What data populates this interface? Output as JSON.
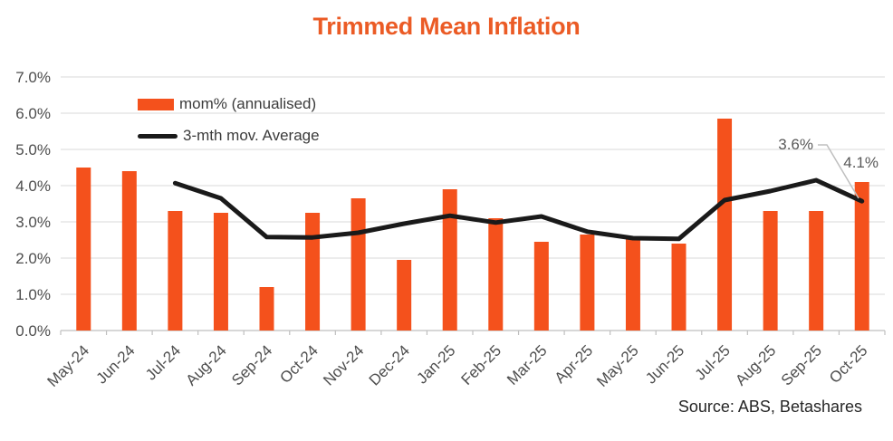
{
  "chart": {
    "title": "Trimmed Mean Inflation",
    "legend": [
      "mom% (annualised)",
      "3-mth mov. Average"
    ],
    "annotations": [
      {
        "text": "3.6%",
        "target": "3-mth mov. Average at Oct-25"
      },
      {
        "text": "4.1%",
        "target": "mom% (annualised) at Oct-25"
      }
    ],
    "source": "Source: ABS, Betashares",
    "colors": {
      "bar": "#F4511C",
      "line": "#1A1A1A",
      "title": "#EB5B25",
      "gridline": "#D9D9D9",
      "axis_line": "#BFBFBF",
      "tick": "#BFBFBF",
      "axis_text": "#4D4D4D",
      "annotation_text": "#595959",
      "leader": "#BFBFBF"
    }
  },
  "chart_data": {
    "type": "bar",
    "title": "Trimmed Mean Inflation",
    "categories": [
      "May-24",
      "Jun-24",
      "Jul-24",
      "Aug-24",
      "Sep-24",
      "Oct-24",
      "Nov-24",
      "Dec-24",
      "Jan-25",
      "Feb-25",
      "Mar-25",
      "Apr-25",
      "May-25",
      "Jun-25",
      "Jul-25",
      "Aug-25",
      "Sep-25",
      "Oct-25"
    ],
    "series": [
      {
        "name": "mom% (annualised)",
        "type": "bar",
        "values": [
          4.5,
          4.4,
          3.3,
          3.25,
          1.2,
          3.25,
          3.65,
          1.95,
          3.9,
          3.1,
          2.45,
          2.65,
          2.55,
          2.4,
          5.85,
          3.3,
          3.3,
          4.1
        ]
      },
      {
        "name": "3-mth mov. Average",
        "type": "line",
        "values": [
          null,
          null,
          4.07,
          3.65,
          2.58,
          2.57,
          2.7,
          2.95,
          3.17,
          2.98,
          3.15,
          2.73,
          2.55,
          2.53,
          3.6,
          3.85,
          4.15,
          3.57
        ]
      }
    ],
    "y_ticks": [
      "7.0%",
      "6.0%",
      "5.0%",
      "4.0%",
      "3.0%",
      "2.0%",
      "1.0%",
      "0.0%"
    ],
    "ylim": [
      0,
      7
    ],
    "grid": true,
    "legend_position": "top-left-inside",
    "point_labels": {
      "Oct-25": {
        "mom_annualised": "4.1%",
        "moving_average": "3.6%"
      }
    }
  }
}
